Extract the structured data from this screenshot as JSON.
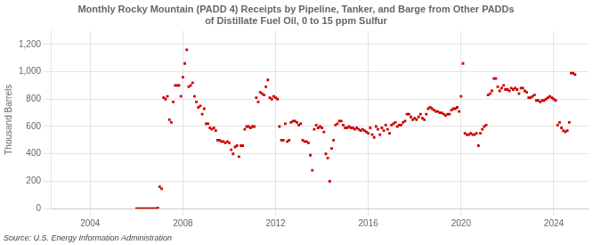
{
  "chart_data": {
    "type": "scatter",
    "title": "Monthly Rocky Mountain (PADD 4) Receipts by Pipeline, Tanker, and Barge from Other PADDs\nof Distillate Fuel Oil, 0 to 15 ppm Sulfur",
    "ylabel": "Thousand Barrels",
    "annotations": [
      "Source: U.S. Energy Information Administration"
    ],
    "color": "#cc0000",
    "marker": "square",
    "grid": true,
    "xlim": [
      2002.3,
      2025.5
    ],
    "xticks": [
      2004,
      2008,
      2012,
      2016,
      2020,
      2024
    ],
    "ylim": [
      0,
      1300
    ],
    "yticks": [
      0,
      200,
      400,
      600,
      800,
      {
        "value": 1000,
        "label": "1,000"
      },
      {
        "value": 1200,
        "label": "1,200"
      }
    ],
    "x": [
      2006,
      2006.0833333333333,
      2006.1666666666667,
      2006.25,
      2006.3333333333333,
      2006.4166666666667,
      2006.5,
      2006.5833333333333,
      2006.6666666666667,
      2006.75,
      2006.8333333333333,
      2006.9166666666667,
      2007,
      2007.0833333333333,
      2007.1666666666667,
      2007.25,
      2007.3333333333333,
      2007.4166666666667,
      2007.5,
      2007.5833333333333,
      2007.6666666666667,
      2007.75,
      2007.8333333333333,
      2007.9166666666667,
      2008,
      2008.0833333333333,
      2008.1666666666667,
      2008.25,
      2008.3333333333333,
      2008.4166666666667,
      2008.5,
      2008.5833333333333,
      2008.6666666666667,
      2008.75,
      2008.8333333333333,
      2008.9166666666667,
      2009,
      2009.0833333333333,
      2009.1666666666667,
      2009.25,
      2009.3333333333333,
      2009.4166666666667,
      2009.5,
      2009.5833333333333,
      2009.6666666666667,
      2009.75,
      2009.8333333333333,
      2009.9166666666667,
      2010,
      2010.0833333333333,
      2010.1666666666667,
      2010.25,
      2010.3333333333333,
      2010.4166666666667,
      2010.5,
      2010.5833333333333,
      2010.6666666666667,
      2010.75,
      2010.8333333333333,
      2010.9166666666667,
      2011,
      2011.0833333333333,
      2011.1666666666667,
      2011.25,
      2011.3333333333333,
      2011.4166666666667,
      2011.5,
      2011.5833333333333,
      2011.6666666666667,
      2011.75,
      2011.8333333333333,
      2011.9166666666667,
      2012,
      2012.0833333333333,
      2012.1666666666667,
      2012.25,
      2012.3333333333333,
      2012.4166666666667,
      2012.5,
      2012.5833333333333,
      2012.6666666666667,
      2012.75,
      2012.8333333333333,
      2012.9166666666667,
      2013,
      2013.0833333333333,
      2013.1666666666667,
      2013.25,
      2013.3333333333333,
      2013.4166666666667,
      2013.5,
      2013.5833333333333,
      2013.6666666666667,
      2013.75,
      2013.8333333333333,
      2013.9166666666667,
      2014,
      2014.0833333333333,
      2014.1666666666667,
      2014.25,
      2014.3333333333333,
      2014.4166666666667,
      2014.5,
      2014.5833333333333,
      2014.6666666666667,
      2014.75,
      2014.8333333333333,
      2014.9166666666667,
      2015,
      2015.0833333333333,
      2015.1666666666667,
      2015.25,
      2015.3333333333333,
      2015.4166666666667,
      2015.5,
      2015.5833333333333,
      2015.6666666666667,
      2015.75,
      2015.8333333333333,
      2015.9166666666667,
      2016,
      2016.0833333333333,
      2016.1666666666667,
      2016.25,
      2016.3333333333333,
      2016.4166666666667,
      2016.5,
      2016.5833333333333,
      2016.6666666666667,
      2016.75,
      2016.8333333333333,
      2016.9166666666667,
      2017,
      2017.0833333333333,
      2017.1666666666667,
      2017.25,
      2017.3333333333333,
      2017.4166666666667,
      2017.5,
      2017.5833333333333,
      2017.6666666666667,
      2017.75,
      2017.8333333333333,
      2017.9166666666667,
      2018,
      2018.0833333333333,
      2018.1666666666667,
      2018.25,
      2018.3333333333333,
      2018.4166666666667,
      2018.5,
      2018.5833333333333,
      2018.6666666666667,
      2018.75,
      2018.8333333333333,
      2018.9166666666667,
      2019,
      2019.0833333333333,
      2019.1666666666667,
      2019.25,
      2019.3333333333333,
      2019.4166666666667,
      2019.5,
      2019.5833333333333,
      2019.6666666666667,
      2019.75,
      2019.8333333333333,
      2019.9166666666667,
      2020,
      2020.0833333333333,
      2020.1666666666667,
      2020.25,
      2020.3333333333333,
      2020.4166666666667,
      2020.5,
      2020.5833333333333,
      2020.6666666666667,
      2020.75,
      2020.8333333333333,
      2020.9166666666667,
      2021,
      2021.0833333333333,
      2021.1666666666667,
      2021.25,
      2021.3333333333333,
      2021.4166666666667,
      2021.5,
      2021.5833333333333,
      2021.6666666666667,
      2021.75,
      2021.8333333333333,
      2021.9166666666667,
      2022,
      2022.0833333333333,
      2022.1666666666667,
      2022.25,
      2022.3333333333333,
      2022.4166666666667,
      2022.5,
      2022.5833333333333,
      2022.6666666666667,
      2022.75,
      2022.8333333333333,
      2022.9166666666667,
      2023,
      2023.0833333333333,
      2023.1666666666667,
      2023.25,
      2023.3333333333333,
      2023.4166666666667,
      2023.5,
      2023.5833333333333,
      2023.6666666666667,
      2023.75,
      2023.8333333333333,
      2023.9166666666667,
      2024,
      2024.0833333333333,
      2024.1666666666667,
      2024.25,
      2024.3333333333333,
      2024.4166666666667,
      2024.5,
      2024.5833333333333,
      2024.6666666666667,
      2024.75,
      2024.8333333333333,
      2024.9166666666667
    ],
    "values": [
      0,
      0,
      0,
      0,
      0,
      0,
      0,
      0,
      0,
      0,
      0,
      5,
      160,
      145,
      810,
      800,
      820,
      650,
      630,
      780,
      900,
      900,
      900,
      820,
      960,
      1060,
      1160,
      890,
      900,
      920,
      820,
      780,
      740,
      750,
      690,
      730,
      620,
      620,
      590,
      580,
      590,
      570,
      500,
      500,
      490,
      490,
      480,
      490,
      480,
      430,
      400,
      450,
      460,
      380,
      460,
      460,
      580,
      600,
      600,
      590,
      600,
      600,
      810,
      780,
      850,
      840,
      830,
      890,
      940,
      810,
      800,
      820,
      810,
      800,
      600,
      500,
      500,
      620,
      490,
      500,
      630,
      640,
      640,
      630,
      610,
      620,
      500,
      490,
      490,
      480,
      390,
      280,
      580,
      610,
      590,
      600,
      590,
      560,
      400,
      370,
      200,
      440,
      500,
      610,
      620,
      640,
      640,
      610,
      590,
      590,
      600,
      590,
      590,
      580,
      590,
      580,
      570,
      580,
      570,
      560,
      550,
      590,
      540,
      520,
      600,
      580,
      540,
      590,
      570,
      610,
      580,
      550,
      610,
      620,
      630,
      600,
      610,
      610,
      630,
      640,
      690,
      690,
      670,
      650,
      660,
      650,
      670,
      690,
      660,
      650,
      690,
      730,
      740,
      730,
      720,
      710,
      710,
      700,
      700,
      690,
      680,
      690,
      690,
      720,
      730,
      730,
      740,
      710,
      820,
      1060,
      550,
      540,
      540,
      550,
      540,
      540,
      550,
      460,
      550,
      580,
      600,
      610,
      830,
      840,
      860,
      950,
      950,
      890,
      860,
      880,
      900,
      870,
      870,
      860,
      880,
      870,
      880,
      870,
      840,
      880,
      880,
      860,
      850,
      810,
      810,
      820,
      830,
      790,
      790,
      780,
      790,
      790,
      800,
      810,
      820,
      810,
      800,
      790,
      610,
      630,
      590,
      570,
      560,
      570,
      630,
      990,
      990,
      980
    ]
  }
}
